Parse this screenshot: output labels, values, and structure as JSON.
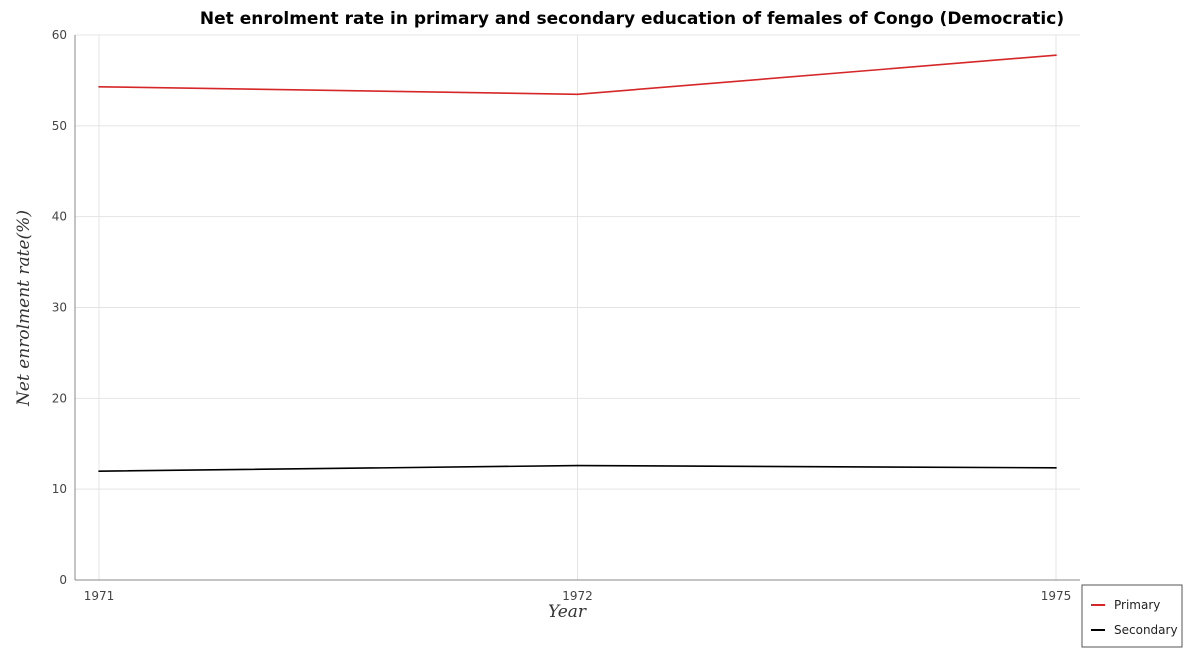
{
  "chart_data": {
    "type": "line",
    "title": "Net enrolment rate in primary and secondary education of females of Congo (Democratic)",
    "xlabel": "Year",
    "ylabel": "Net enrolment rate(%)",
    "categories": [
      "1971",
      "1972",
      "1975"
    ],
    "ylim": [
      0,
      60
    ],
    "yticks": [
      "0",
      "10",
      "20",
      "30",
      "40",
      "50",
      "60"
    ],
    "grid": true,
    "legend_position": "bottom-right",
    "series": [
      {
        "name": "Primary",
        "color": "#d62728",
        "values": [
          54.3,
          53.47,
          57.78
        ]
      },
      {
        "name": "Secondary",
        "color": "#000000",
        "values": [
          11.98,
          12.6,
          12.35
        ]
      }
    ]
  }
}
